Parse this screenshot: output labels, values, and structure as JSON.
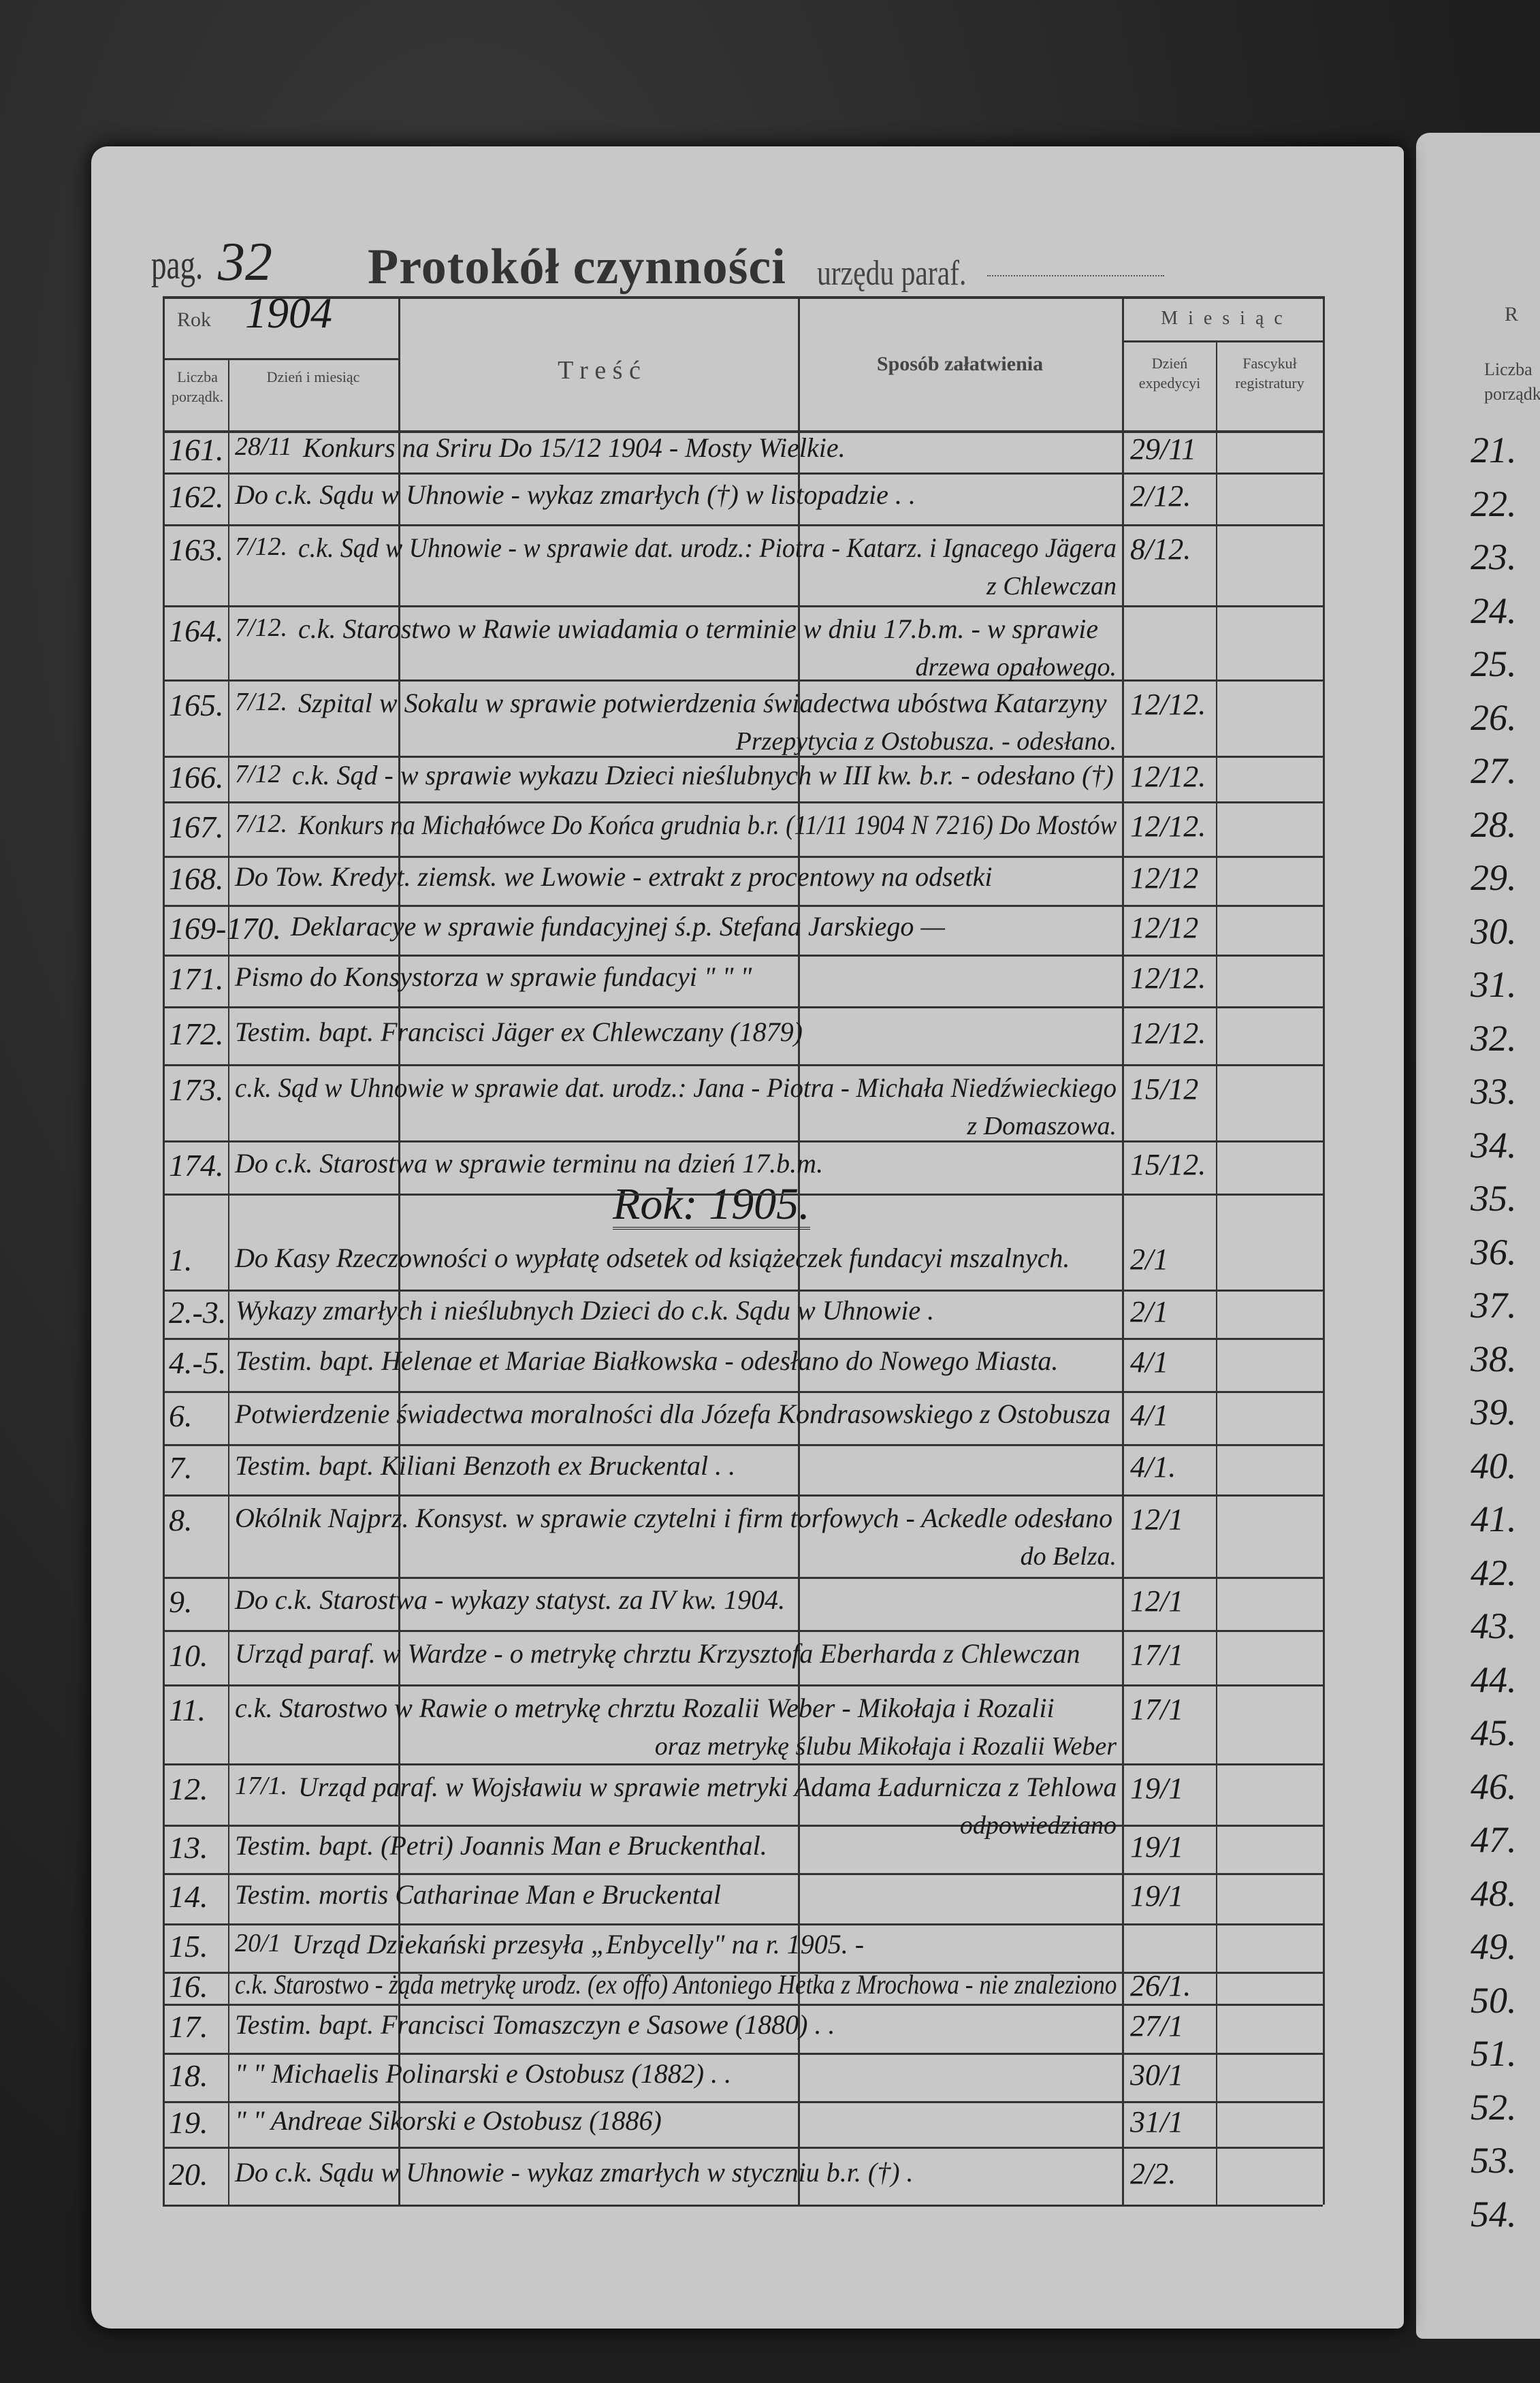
{
  "header": {
    "pag_label": "pag.",
    "page_number": "32",
    "title": "Protokół czynności",
    "subtitle": "urzędu paraf."
  },
  "columns": {
    "rok_label": "Rok",
    "rok_value": "1904",
    "liczba": "Liczba porządk.",
    "dzien": "Dzień i miesiąc",
    "tresc": "T r e ś ć",
    "sposob": "Sposób załatwienia",
    "miesiac": "M i e s i ą c",
    "dzien_exp": "Dzień expedycyi",
    "fascykul": "Fascykuł registratury"
  },
  "entries": [
    {
      "no": "161.",
      "date": "28/11",
      "text": "Konkurs na Sriru Do 15/12 1904 - Mosty Wielkie.",
      "text2": "",
      "exp": "29/11"
    },
    {
      "no": "162.",
      "date": "",
      "text": "Do c.k. Sądu w Uhnowie - wykaz zmarłych (†) w listopadzie . .",
      "text2": "",
      "exp": "2/12."
    },
    {
      "no": "163.",
      "date": "7/12.",
      "text": "c.k. Sąd w Uhnowie - w sprawie dat. urodz.: Piotra - Katarz. i Ignacego Jägera",
      "text2": "z Chlewczan",
      "exp": "8/12."
    },
    {
      "no": "164.",
      "date": "7/12.",
      "text": "c.k. Starostwo w Rawie uwiadamia o terminie w dniu 17.b.m. - w sprawie",
      "text2": "drzewa opałowego.",
      "exp": ""
    },
    {
      "no": "165.",
      "date": "7/12.",
      "text": "Szpital w Sokalu w sprawie potwierdzenia świadectwa ubóstwa Katarzyny",
      "text2": "Przepytycia z Ostobusza. - odesłano.",
      "exp": "12/12."
    },
    {
      "no": "166.",
      "date": "7/12",
      "text": "c.k. Sąd - w sprawie wykazu Dzieci nieślubnych w III kw. b.r. - odesłano (†)",
      "text2": "",
      "exp": "12/12."
    },
    {
      "no": "167.",
      "date": "7/12.",
      "text": "Konkurs na Michałówce Do Końca grudnia b.r. (11/11 1904 N 7216) Do Mostów",
      "text2": "",
      "exp": "12/12."
    },
    {
      "no": "168.",
      "date": "",
      "text": "Do Tow. Kredyt. ziemsk. we Lwowie - extrakt z procentowy na odsetki",
      "text2": "",
      "exp": "12/12"
    },
    {
      "no": "169-170.",
      "date": "",
      "text": "Deklaracye w sprawie fundacyjnej ś.p. Stefana Jarskiego —",
      "text2": "",
      "exp": "12/12"
    },
    {
      "no": "171.",
      "date": "",
      "text": "Pismo do Konsystorza w sprawie fundacyi \"  \"  \"",
      "text2": "",
      "exp": "12/12."
    },
    {
      "no": "172.",
      "date": "",
      "text": "Testim. bapt. Francisci Jäger ex Chlewczany (1879)",
      "text2": "",
      "exp": "12/12."
    },
    {
      "no": "173.",
      "date": "",
      "text": "c.k. Sąd w Uhnowie w sprawie dat. urodz.: Jana - Piotra - Michała Niedźwieckiego",
      "text2": "z Domaszowa.",
      "exp": "15/12"
    },
    {
      "no": "174.",
      "date": "",
      "text": "Do c.k. Starostwa w sprawie terminu na dzień 17.b.m.",
      "text2": "",
      "exp": "15/12."
    }
  ],
  "year_heading": "Rok: 1905.",
  "entries_1905": [
    {
      "no": "1.",
      "date": "",
      "text": "Do Kasy Rzeczowności o wypłatę odsetek od książeczek fundacyi mszalnych.",
      "text2": "",
      "exp": "2/1"
    },
    {
      "no": "2.-3.",
      "date": "",
      "text": "Wykazy zmarłych i nieślubnych Dzieci do c.k. Sądu w Uhnowie .",
      "text2": "",
      "exp": "2/1"
    },
    {
      "no": "4.-5.",
      "date": "",
      "text": "Testim. bapt. Helenae et Mariae Białkowska - odesłano do Nowego Miasta.",
      "text2": "",
      "exp": "4/1"
    },
    {
      "no": "6.",
      "date": "",
      "text": "Potwierdzenie świadectwa moralności dla Józefa Kondrasowskiego z Ostobusza",
      "text2": "",
      "exp": "4/1"
    },
    {
      "no": "7.",
      "date": "",
      "text": "Testim. bapt. Kiliani Benzoth ex Bruckental .  .",
      "text2": "",
      "exp": "4/1."
    },
    {
      "no": "8.",
      "date": "",
      "text": "Okólnik Najprz. Konsyst. w sprawie czytelni i firm torfowych - Ackedle odesłano",
      "text2": "do Belza.",
      "exp": "12/1"
    },
    {
      "no": "9.",
      "date": "",
      "text": "Do c.k. Starostwa - wykazy statyst. za IV kw. 1904.",
      "text2": "",
      "exp": "12/1"
    },
    {
      "no": "10.",
      "date": "",
      "text": "Urząd paraf. w Wardze - o metrykę chrztu Krzysztofa Eberharda z Chlewczan",
      "text2": "",
      "exp": "17/1"
    },
    {
      "no": "11.",
      "date": "",
      "text": "c.k. Starostwo w Rawie o metrykę chrztu Rozalii Weber - Mikołaja i Rozalii",
      "text2": "oraz metrykę ślubu Mikołaja i Rozalii Weber",
      "exp": "17/1"
    },
    {
      "no": "12.",
      "date": "17/1.",
      "text": "Urząd paraf. w Wojsławiu w sprawie metryki Adama Ładurnicza z Tehlowa",
      "text2": "odpowiedziano",
      "exp": "19/1"
    },
    {
      "no": "13.",
      "date": "",
      "text": "Testim. bapt. (Petri) Joannis Man e Bruckenthal.",
      "text2": "",
      "exp": "19/1"
    },
    {
      "no": "14.",
      "date": "",
      "text": "Testim. mortis Catharinae Man e Bruckental",
      "text2": "",
      "exp": "19/1"
    },
    {
      "no": "15.",
      "date": "20/1",
      "text": "Urząd Dziekański przesyła „Enbycelly\" na r. 1905. -",
      "text2": "",
      "exp": ""
    },
    {
      "no": "16.",
      "date": "",
      "text": "c.k. Starostwo - żąda metrykę urodz. (ex offo) Antoniego Hetka z Mrochowa - nie znaleziono",
      "text2": "",
      "exp": "26/1."
    },
    {
      "no": "17.",
      "date": "",
      "text": "Testim. bapt. Francisci Tomaszczyn e Sasowe (1880) . .",
      "text2": "",
      "exp": "27/1"
    },
    {
      "no": "18.",
      "date": "",
      "text": "\"      \"   Michaelis Polinarski e Ostobusz (1882) . .",
      "text2": "",
      "exp": "30/1"
    },
    {
      "no": "19.",
      "date": "",
      "text": "\"      \"   Andreae Sikorski e Ostobusz (1886)",
      "text2": "",
      "exp": "31/1"
    },
    {
      "no": "20.",
      "date": "",
      "text": "Do c.k. Sądu w Uhnowie - wykaz zmarłych w styczniu b.r. (†) .",
      "text2": "",
      "exp": "2/2."
    }
  ],
  "right_page": {
    "header_letter": "R",
    "liczba_label": "Liczba porządk.",
    "numbers": [
      "21.",
      "22.",
      "23.",
      "24.",
      "25.",
      "26.",
      "27.",
      "28.",
      "29.",
      "30.",
      "31.",
      "32.",
      "33.",
      "34.",
      "35.",
      "36.",
      "37.",
      "38.",
      "39.",
      "40.",
      "41.",
      "42.",
      "43.",
      "44.",
      "45.",
      "46.",
      "47.",
      "48.",
      "49.",
      "50.",
      "51.",
      "52.",
      "53.",
      "54."
    ]
  }
}
